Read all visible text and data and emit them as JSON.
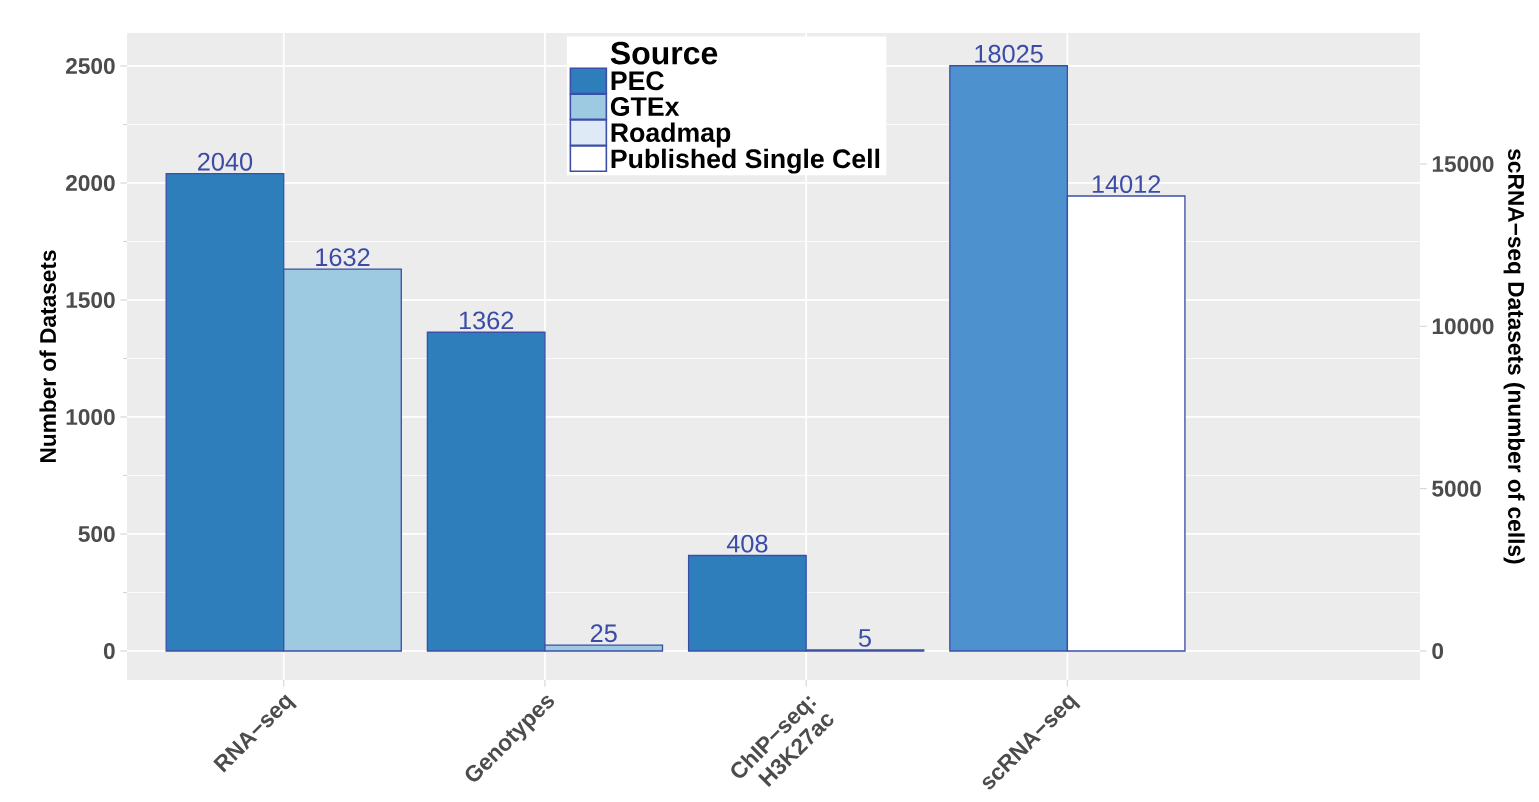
{
  "chart_data": {
    "type": "bar",
    "categories": [
      "RNA−seq",
      "Genotypes",
      "ChIP−seq: H3K27ac",
      "scRNA−seq"
    ],
    "series": [
      {
        "name": "PEC",
        "color": "#2e7ebc",
        "values": [
          2040,
          1362,
          408,
          null
        ]
      },
      {
        "name": "GTEx",
        "color": "#9ecae1",
        "values": [
          1632,
          25,
          null,
          null
        ]
      },
      {
        "name": "Roadmap",
        "color": "#deebf7",
        "values": [
          null,
          null,
          5,
          null
        ]
      },
      {
        "color": "#4d92cf",
        "axis": "y2",
        "values": [
          null,
          null,
          null,
          18025
        ]
      },
      {
        "name": "Published Single Cell",
        "color": "#ffffff",
        "axis": "y2",
        "values": [
          null,
          null,
          null,
          14012
        ]
      }
    ],
    "ylabel": "Number of Datasets",
    "y2label": "scRNA−seq Datasets (number of cells)",
    "legend_title": "Source",
    "ylim": [
      -124,
      2641
    ],
    "yticks": [
      0,
      500,
      1000,
      1500,
      2000,
      2500
    ],
    "y2lim": [
      -893,
      19033
    ],
    "y2ticks": [
      0,
      5000,
      10000,
      15000
    ],
    "grid": true,
    "legend": "top",
    "data_labels": true
  }
}
